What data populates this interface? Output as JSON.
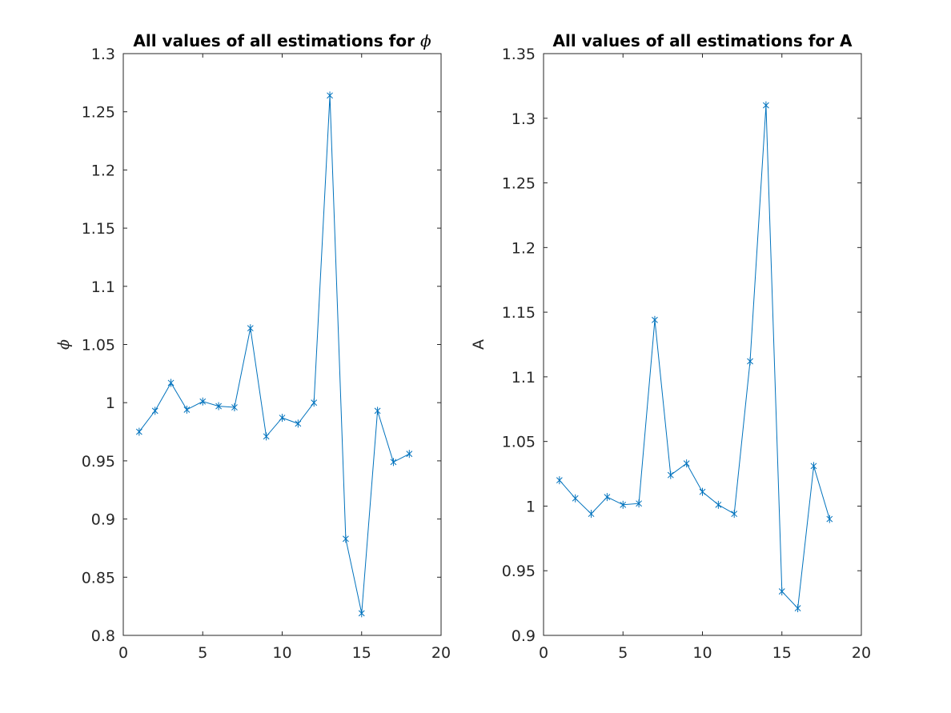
{
  "chart_data": [
    {
      "type": "line",
      "marker": "asterisk",
      "color": "#0072BD",
      "title_text": "All values of all estimations for ",
      "title_symbol": "ϕ",
      "xlabel": "",
      "ylabel": "ϕ",
      "ylabel_italic": true,
      "xlim": [
        0,
        20
      ],
      "ylim": [
        0.8,
        1.3
      ],
      "xticks": [
        "0",
        "5",
        "10",
        "15",
        "20"
      ],
      "yticks": [
        "0.8",
        "0.85",
        "0.9",
        "0.95",
        "1",
        "1.05",
        "1.1",
        "1.15",
        "1.2",
        "1.25",
        "1.3"
      ],
      "x": [
        1,
        2,
        3,
        4,
        5,
        6,
        7,
        8,
        9,
        10,
        11,
        12,
        13,
        14,
        15,
        16,
        17,
        18
      ],
      "y": [
        0.975,
        0.993,
        1.017,
        0.994,
        1.001,
        0.997,
        0.996,
        1.064,
        0.971,
        0.987,
        0.982,
        1.0,
        1.264,
        0.883,
        0.819,
        0.993,
        0.949,
        0.956
      ]
    },
    {
      "type": "line",
      "marker": "asterisk",
      "color": "#0072BD",
      "title_text": "All values of all estimations for A",
      "title_symbol": "",
      "xlabel": "",
      "ylabel": "A",
      "ylabel_italic": false,
      "xlim": [
        0,
        20
      ],
      "ylim": [
        0.9,
        1.35
      ],
      "xticks": [
        "0",
        "5",
        "10",
        "15",
        "20"
      ],
      "yticks": [
        "0.9",
        "0.95",
        "1",
        "1.05",
        "1.1",
        "1.15",
        "1.2",
        "1.25",
        "1.3",
        "1.35"
      ],
      "x": [
        1,
        2,
        3,
        4,
        5,
        6,
        7,
        8,
        9,
        10,
        11,
        12,
        13,
        14,
        15,
        16,
        17,
        18
      ],
      "y": [
        1.02,
        1.006,
        0.994,
        1.007,
        1.001,
        1.002,
        1.144,
        1.024,
        1.033,
        1.011,
        1.001,
        0.994,
        1.112,
        1.31,
        0.934,
        0.921,
        1.031,
        0.99
      ]
    }
  ]
}
